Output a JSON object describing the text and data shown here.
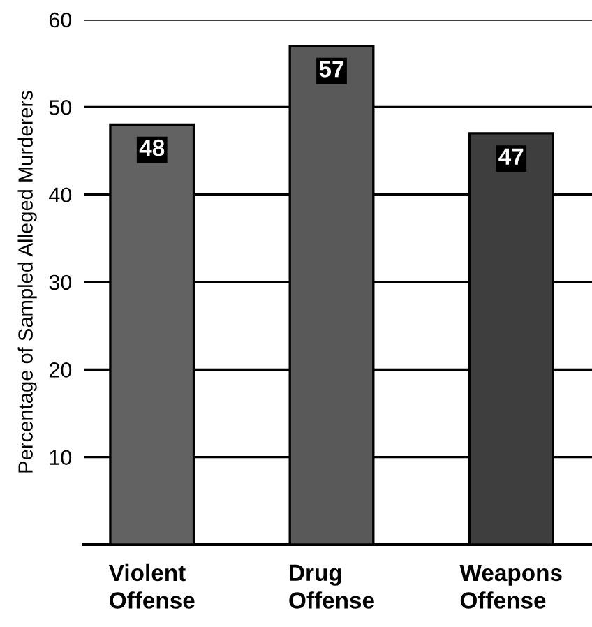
{
  "chart_data": {
    "type": "bar",
    "ylabel": "Percentage of Sampled Alleged Murderers",
    "categories": [
      "Violent\nOffense",
      "Drug\nOffense",
      "Weapons\nOffense"
    ],
    "values": [
      48,
      57,
      47
    ],
    "colors": [
      "#626262",
      "#595959",
      "#3e3e3e"
    ],
    "ylim": [
      0,
      60
    ],
    "yticks": [
      10,
      20,
      30,
      40,
      50,
      60
    ],
    "grid": "y",
    "data_labels": true
  }
}
